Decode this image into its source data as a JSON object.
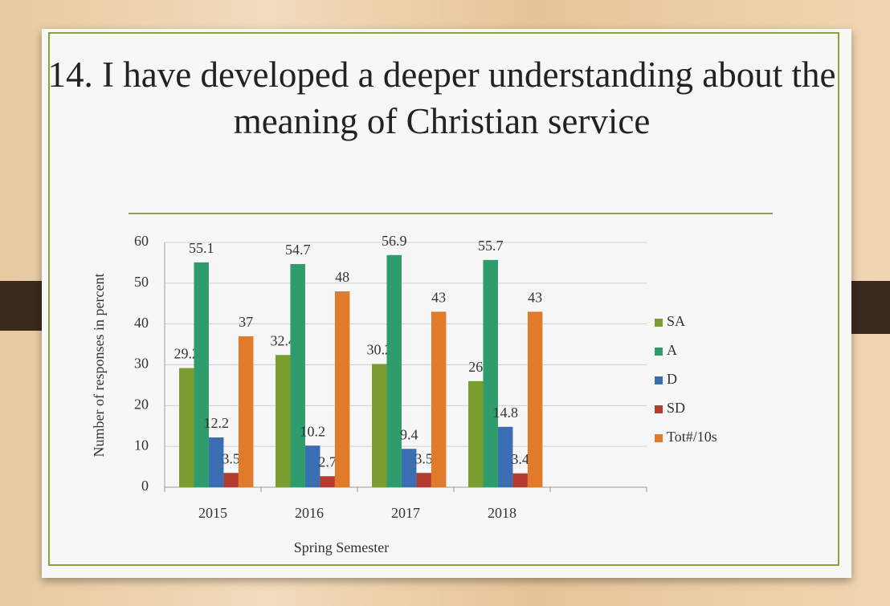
{
  "chart_data": {
    "type": "bar",
    "title": "14.  I have developed a deeper understanding about the meaning of Christian service",
    "x_label": "Spring Semester",
    "y_label": "Number of responses in percent",
    "categories": [
      "2015",
      "2016",
      "2017",
      "2018",
      null
    ],
    "series": [
      {
        "name": "SA",
        "color": "#7c9e30",
        "values": [
          29.2,
          32.4,
          30.2,
          26,
          null
        ]
      },
      {
        "name": "A",
        "color": "#2f9c6e",
        "values": [
          55.1,
          54.7,
          56.9,
          55.7,
          null
        ]
      },
      {
        "name": "D",
        "color": "#3b6db3",
        "values": [
          12.2,
          10.2,
          9.4,
          14.8,
          null
        ]
      },
      {
        "name": "SD",
        "color": "#b53a30",
        "values": [
          3.5,
          2.7,
          3.5,
          3.4,
          null
        ]
      },
      {
        "name": "Tot#/10s",
        "color": "#e27b29",
        "values": [
          37,
          48,
          43,
          43,
          null
        ]
      }
    ],
    "ylim": [
      0,
      60
    ],
    "yticks": [
      0,
      10,
      20,
      30,
      40,
      50,
      60
    ],
    "grid": true,
    "legend": "right",
    "data_labels": true
  }
}
